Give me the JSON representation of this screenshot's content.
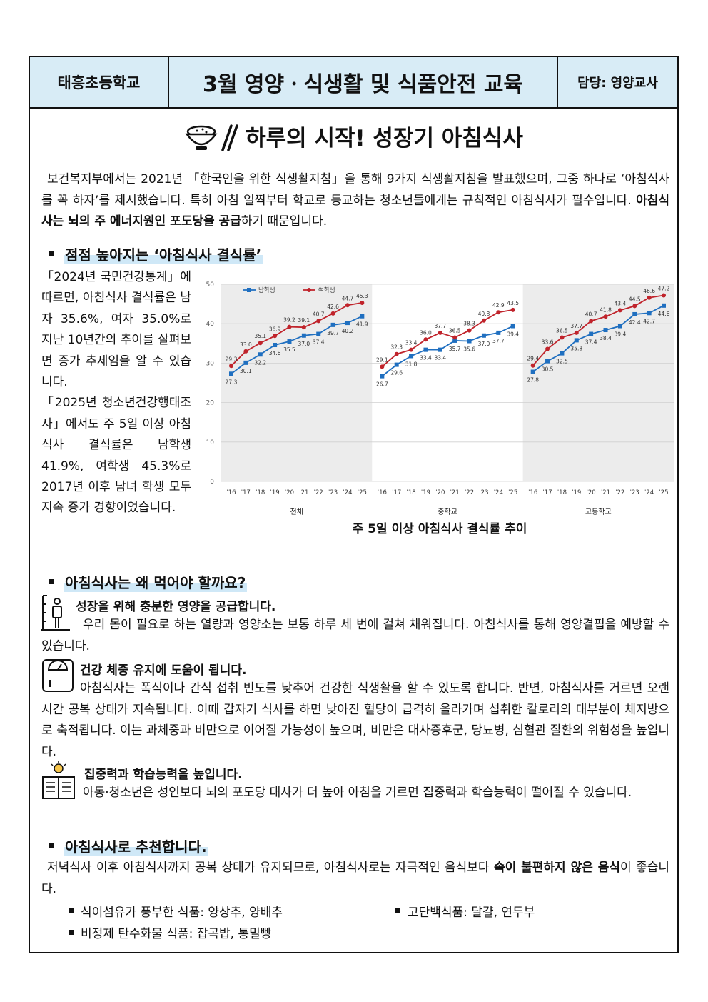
{
  "header": {
    "school": "태흥초등학교",
    "title": "3월 영양ㆍ식생활 및 식품안전 교육",
    "teacher": "담당: 영양교사"
  },
  "main_title": "하루의 시작! 성장기 아침식사",
  "intro": {
    "text_a": "보건복지부에서는 2021년 「한국인을 위한 식생활지침」을 통해 9가지 식생활지침을 발표했으며, 그중 하나로 ‘아침식사를 꼭 하자’를 제시했습니다. 특히 아침 일찍부터 학교로 등교하는 청소년들에게는 규칙적인 아침식사가 필수입니다. ",
    "text_bold": "아침식사는 뇌의 주 에너지원인 포도당을 공급",
    "text_b": "하기 때문입니다."
  },
  "section1": {
    "heading": "점점 높아지는 ‘아침식사 결식률’",
    "text": "「2024년 국민건강통계」에 따르면, 아침식사 결식률은 남자 35.6%, 여자 35.0%로 지난 10년간의 추이를 살펴보면 증가 추세임을 알 수 있습니다.\n「2025년 청소년건강행태조사」에서도 주 5일 이상 아침식사 결식률은 남학생 41.9%, 여학생 45.3%로 2017년 이후 남녀 학생 모두 지속 증가 경향이었습니다.",
    "chart_caption": "주 5일 이상 아침식사 결식률 추이"
  },
  "chart_data": {
    "type": "line",
    "ylim": [
      0,
      50
    ],
    "yticks": [
      0,
      10,
      20,
      30,
      40,
      50
    ],
    "x": [
      "'16",
      "'17",
      "'18",
      "'19",
      "'20",
      "'21",
      "'22",
      "'23",
      "'24",
      "'25"
    ],
    "legend": [
      "남학생",
      "여학생"
    ],
    "colors": {
      "남학생": "#1f6fc0",
      "여학생": "#c0232b"
    },
    "panels": [
      {
        "label": "전체",
        "series": [
          {
            "name": "남학생",
            "values": [
              27.3,
              30.1,
              32.2,
              34.6,
              35.5,
              37.0,
              37.4,
              39.7,
              40.2,
              41.9
            ]
          },
          {
            "name": "여학생",
            "values": [
              29.3,
              33.0,
              35.1,
              36.9,
              39.2,
              39.1,
              40.7,
              42.6,
              44.7,
              45.3
            ]
          }
        ]
      },
      {
        "label": "중학교",
        "series": [
          {
            "name": "남학생",
            "values": [
              26.7,
              29.6,
              31.8,
              33.4,
              33.4,
              35.7,
              35.6,
              37.0,
              37.7,
              39.4
            ]
          },
          {
            "name": "여학생",
            "values": [
              29.1,
              32.3,
              33.4,
              36.0,
              37.7,
              36.5,
              38.3,
              40.8,
              42.9,
              43.5
            ]
          }
        ]
      },
      {
        "label": "고등학교",
        "series": [
          {
            "name": "남학생",
            "values": [
              27.8,
              30.5,
              32.5,
              35.8,
              37.4,
              38.4,
              39.4,
              42.4,
              42.7,
              44.6
            ]
          },
          {
            "name": "여학생",
            "values": [
              29.4,
              33.6,
              36.5,
              37.7,
              40.7,
              41.8,
              43.4,
              44.5,
              46.6,
              47.2
            ]
          }
        ]
      }
    ]
  },
  "section2": {
    "heading": "아침식사는 왜 먹어야 할까요?",
    "items": [
      {
        "icon": "growth-icon",
        "title": "성장을 위해 충분한 영양을 공급합니다.",
        "text": "우리 몸이 필요로 하는 열량과 영양소는 보통 하루 세 번에 걸쳐 채워집니다. 아침식사를 통해 영양결핍을 예방할 수 있습니다."
      },
      {
        "icon": "scale-icon",
        "title": "건강 체중 유지에 도움이 됩니다.",
        "text": "아침식사는 폭식이나 간식 섭취 빈도를 낮추어 건강한 식생활을 할 수 있도록 합니다. 반면, 아침식사를 거르면 오랜 시간 공복 상태가 지속됩니다. 이때 갑자기 식사를 하면 낮아진 혈당이 급격히 올라가며 섭취한 칼로리의 대부분이 체지방으로 축적됩니다. 이는 과체중과 비만으로 이어질 가능성이 높으며, 비만은 대사증후군, 당뇨병, 심혈관 질환의 위험성을 높입니다."
      },
      {
        "icon": "study-icon",
        "title": "집중력과 학습능력을 높입니다.",
        "text": "아동·청소년은 성인보다 뇌의 포도당 대사가 더 높아 아침을 거르면 집중력과 학습능력이 떨어질 수 있습니다."
      }
    ]
  },
  "section3": {
    "heading": "아침식사로 추천합니다.",
    "text_a": "저녁식사 이후 아침식사까지 공복 상태가 유지되므로, 아침식사로는 자극적인 음식보다 ",
    "text_bold": "속이 불편하지 않은 음식",
    "text_b": "이 좋습니다.",
    "bullets": [
      "식이섬유가 풍부한 식품: 양상추, 양배추",
      "고단백식품: 달걀, 연두부",
      "비정제 탄수화물 식품: 잡곡밥, 통밀빵"
    ]
  }
}
